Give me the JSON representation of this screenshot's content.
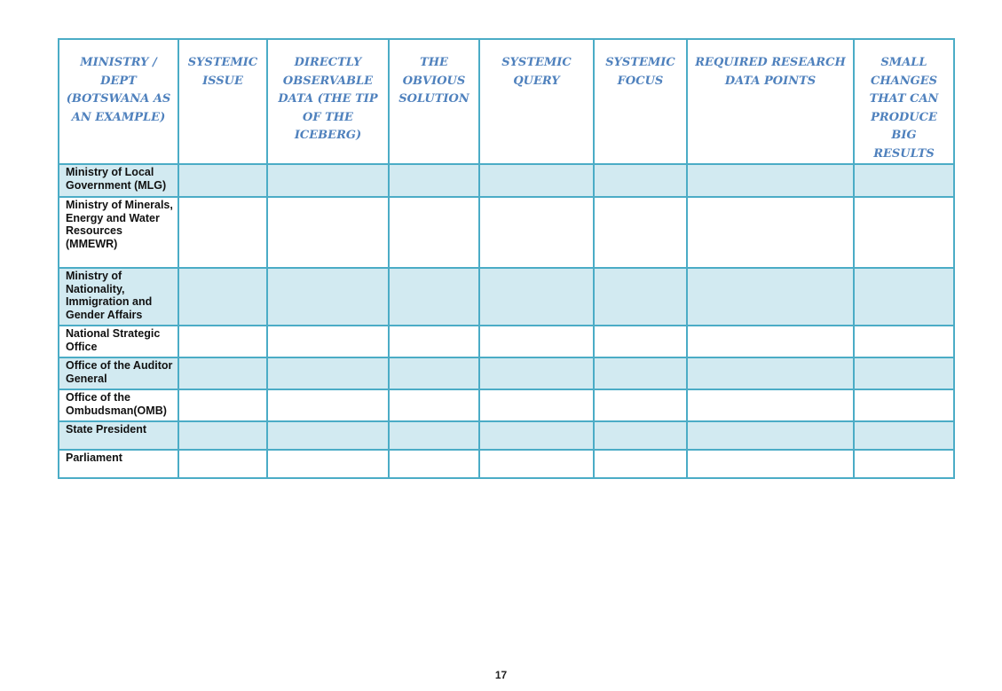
{
  "table": {
    "headers": [
      "MINISTRY / DEPT (BOTSWANA AS AN EXAMPLE)",
      "SYSTEMIC ISSUE",
      "DIRECTLY OBSERVABLE DATA (THE TIP OF THE ICEBERG)",
      "THE OBVIOUS SOLUTION",
      "SYSTEMIC QUERY",
      "SYSTEMIC FOCUS",
      "REQUIRED RESEARCH DATA POINTS",
      "SMALL CHANGES THAT CAN PRODUCE BIG RESULTS"
    ],
    "rows": [
      "Ministry of Local Government (MLG)",
      "Ministry of Minerals, Energy and Water Resources (MMEWR)",
      "Ministry of Nationality, Immigration and Gender Affairs",
      "National Strategic Office",
      "Office of the Auditor General",
      "Office of the Ombudsman(OMB)",
      "State President",
      "Parliament"
    ]
  },
  "colors": {
    "border": "#4bacc6",
    "header_text": "#4f81bd",
    "shaded_row": "#d2eaf1"
  },
  "page_number": "17"
}
